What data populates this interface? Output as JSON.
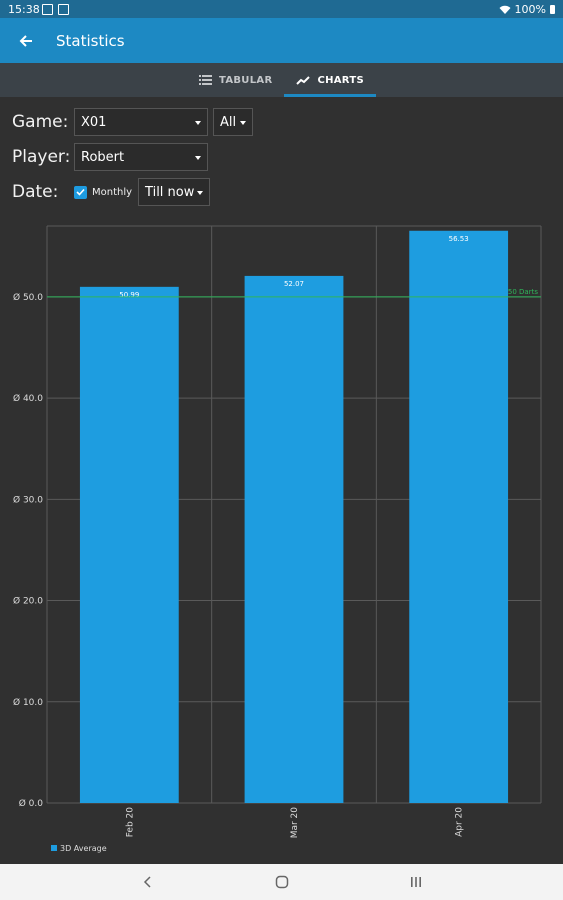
{
  "status_bar": {
    "time": "15:38",
    "battery": "100%"
  },
  "app_bar": {
    "title": "Statistics"
  },
  "tabs": [
    {
      "label": "TABULAR",
      "active": false
    },
    {
      "label": "CHARTS",
      "active": true
    }
  ],
  "filters": {
    "game_label": "Game:",
    "game_value": "X01",
    "game_mode_value": "All",
    "player_label": "Player:",
    "player_value": "Robert",
    "date_label": "Date:",
    "monthly_label": "Monthly",
    "monthly_checked": true,
    "date_range_value": "Till now"
  },
  "colors": {
    "accent": "#1d89c3",
    "bar": "#1e9de0",
    "reference_line": "#2fb55a"
  },
  "chart_data": {
    "type": "bar",
    "categories": [
      "Feb 20",
      "Mar 20",
      "Apr 20"
    ],
    "series": [
      {
        "name": "3D Average",
        "values": [
          50.99,
          52.07,
          56.53
        ]
      }
    ],
    "value_labels": [
      "50.99",
      "52.07",
      "56.53"
    ],
    "ylim": [
      0,
      57
    ],
    "yticks": [
      0,
      10,
      20,
      30,
      40,
      50
    ],
    "ytick_labels": [
      "Ø 0.0",
      "Ø 10.0",
      "Ø 20.0",
      "Ø 30.0",
      "Ø 40.0",
      "Ø 50.0"
    ],
    "reference_line": {
      "value": 50,
      "label": "50 Darts"
    },
    "grid": true,
    "legend_position": "bottom-left"
  }
}
